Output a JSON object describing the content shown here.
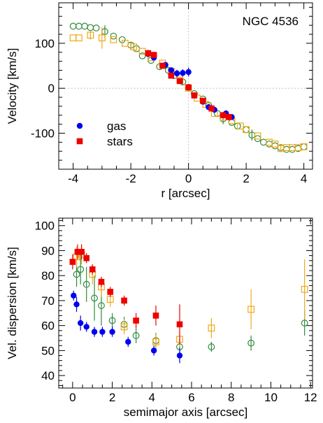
{
  "chart_data": [
    {
      "type": "scatter",
      "annotation": "NGC 4536",
      "xlabel": "r [arcsec]",
      "ylabel": "Velocity [km/s]",
      "xlim": [
        -4.5,
        4.3
      ],
      "ylim": [
        -180,
        190
      ],
      "xticks": [
        -4,
        -2,
        0,
        2,
        4
      ],
      "xtick_labels": [
        "-4",
        "-2",
        "0",
        "2",
        "4"
      ],
      "yticks": [
        -100,
        0,
        100
      ],
      "ytick_labels": [
        "-100",
        "0",
        "100"
      ],
      "reference_lines": {
        "x": 0,
        "y": 0
      },
      "legend_placement": "lower-left",
      "legend": [
        {
          "label": "gas",
          "marker": "filled-circle",
          "color": "#0000ee"
        },
        {
          "label": "stars",
          "marker": "filled-square",
          "color": "#ee0000"
        }
      ],
      "series": [
        {
          "name": "gas",
          "marker": "filled-circle",
          "color": "#0000ee",
          "points": [
            {
              "x": -1.4,
              "y": 76,
              "err": 6
            },
            {
              "x": -1.2,
              "y": 68,
              "err": 6
            },
            {
              "x": -0.8,
              "y": 52,
              "err": 5
            },
            {
              "x": -0.6,
              "y": 40,
              "err": 5
            },
            {
              "x": -0.4,
              "y": 33,
              "err": 8
            },
            {
              "x": -0.2,
              "y": 34,
              "err": 8
            },
            {
              "x": 0.0,
              "y": 36,
              "err": 10
            },
            {
              "x": 0.2,
              "y": -16,
              "err": 5
            },
            {
              "x": 0.5,
              "y": -30,
              "err": 5
            },
            {
              "x": 0.7,
              "y": -42,
              "err": 5
            },
            {
              "x": 0.9,
              "y": -48,
              "err": 5
            },
            {
              "x": 1.3,
              "y": -56,
              "err": 6
            },
            {
              "x": 1.5,
              "y": -64,
              "err": 6
            }
          ]
        },
        {
          "name": "stars",
          "marker": "filled-square",
          "color": "#ee0000",
          "points": [
            {
              "x": -1.4,
              "y": 78,
              "err": 7
            },
            {
              "x": -1.2,
              "y": 74,
              "err": 7
            },
            {
              "x": -0.9,
              "y": 50,
              "err": 6
            },
            {
              "x": -0.6,
              "y": 28,
              "err": 6
            },
            {
              "x": -0.3,
              "y": 16,
              "err": 6
            },
            {
              "x": 0.0,
              "y": 2,
              "err": 7
            },
            {
              "x": 0.2,
              "y": -16,
              "err": 7
            },
            {
              "x": 0.5,
              "y": -28,
              "err": 7
            },
            {
              "x": 0.8,
              "y": -45,
              "err": 7
            },
            {
              "x": 1.2,
              "y": -60,
              "err": 7
            },
            {
              "x": 1.4,
              "y": -64,
              "err": 7
            }
          ]
        },
        {
          "name": "",
          "marker": "open-circle",
          "color": "#2e8b3c",
          "points": [
            {
              "x": -4.0,
              "y": 138,
              "err": 0
            },
            {
              "x": -3.8,
              "y": 138,
              "err": 0
            },
            {
              "x": -3.6,
              "y": 138,
              "err": 0
            },
            {
              "x": -3.4,
              "y": 135,
              "err": 0
            },
            {
              "x": -3.2,
              "y": 134,
              "err": 0
            },
            {
              "x": -2.9,
              "y": 126,
              "err": 14
            },
            {
              "x": -2.6,
              "y": 116,
              "err": 0
            },
            {
              "x": -2.3,
              "y": 108,
              "err": 0
            },
            {
              "x": -2.0,
              "y": 96,
              "err": 6
            },
            {
              "x": -1.8,
              "y": 88,
              "err": 0
            },
            {
              "x": -1.6,
              "y": 72,
              "err": 0
            },
            {
              "x": -1.3,
              "y": 62,
              "err": 0
            },
            {
              "x": -1.0,
              "y": 48,
              "err": 0
            },
            {
              "x": -0.7,
              "y": 40,
              "err": 0
            },
            {
              "x": -0.5,
              "y": 28,
              "err": 0
            },
            {
              "x": -0.2,
              "y": 14,
              "err": 6
            },
            {
              "x": 0.0,
              "y": 2,
              "err": 0
            },
            {
              "x": 0.2,
              "y": -12,
              "err": 0
            },
            {
              "x": 0.5,
              "y": -24,
              "err": 0
            },
            {
              "x": 0.7,
              "y": -38,
              "err": 0
            },
            {
              "x": 1.0,
              "y": -56,
              "err": 0
            },
            {
              "x": 1.2,
              "y": -68,
              "err": 12
            },
            {
              "x": 1.5,
              "y": -76,
              "err": 0
            },
            {
              "x": 1.7,
              "y": -84,
              "err": 0
            },
            {
              "x": 2.0,
              "y": -92,
              "err": 0
            },
            {
              "x": 2.2,
              "y": -104,
              "err": 12
            },
            {
              "x": 2.4,
              "y": -112,
              "err": 0
            },
            {
              "x": 2.6,
              "y": -120,
              "err": 0
            },
            {
              "x": 2.8,
              "y": -124,
              "err": 0
            },
            {
              "x": 3.0,
              "y": -128,
              "err": 0
            },
            {
              "x": 3.2,
              "y": -132,
              "err": 0
            },
            {
              "x": 3.4,
              "y": -136,
              "err": 0
            },
            {
              "x": 3.6,
              "y": -136,
              "err": 0
            },
            {
              "x": 3.8,
              "y": -134,
              "err": 0
            },
            {
              "x": 4.0,
              "y": -130,
              "err": 0
            }
          ]
        },
        {
          "name": "",
          "marker": "open-square",
          "color": "#f0a818",
          "points": [
            {
              "x": -4.0,
              "y": 112,
              "err": 0
            },
            {
              "x": -3.8,
              "y": 112,
              "err": 0
            },
            {
              "x": -3.4,
              "y": 118,
              "err": 10
            },
            {
              "x": -3.0,
              "y": 112,
              "err": 24
            },
            {
              "x": -2.6,
              "y": 108,
              "err": 0
            },
            {
              "x": -2.2,
              "y": 100,
              "err": 0
            },
            {
              "x": -1.9,
              "y": 92,
              "err": 10
            },
            {
              "x": -1.6,
              "y": 82,
              "err": 0
            },
            {
              "x": -1.3,
              "y": 68,
              "err": 0
            },
            {
              "x": -0.9,
              "y": 56,
              "err": 0
            },
            {
              "x": -0.6,
              "y": 38,
              "err": 0
            },
            {
              "x": -0.3,
              "y": 18,
              "err": 0
            },
            {
              "x": 0.0,
              "y": 0,
              "err": 0
            },
            {
              "x": 0.3,
              "y": -22,
              "err": 0
            },
            {
              "x": 0.6,
              "y": -36,
              "err": 0
            },
            {
              "x": 0.9,
              "y": -56,
              "err": 0
            },
            {
              "x": 1.2,
              "y": -64,
              "err": 0
            },
            {
              "x": 1.5,
              "y": -72,
              "err": 0
            },
            {
              "x": 1.8,
              "y": -84,
              "err": 0
            },
            {
              "x": 2.0,
              "y": -92,
              "err": 0
            },
            {
              "x": 2.4,
              "y": -106,
              "err": 0
            },
            {
              "x": 2.8,
              "y": -120,
              "err": 0
            },
            {
              "x": 3.0,
              "y": -124,
              "err": 0
            },
            {
              "x": 3.2,
              "y": -134,
              "err": 8
            },
            {
              "x": 3.4,
              "y": -132,
              "err": 0
            },
            {
              "x": 3.6,
              "y": -132,
              "err": 0
            },
            {
              "x": 3.8,
              "y": -132,
              "err": 0
            },
            {
              "x": 4.0,
              "y": -130,
              "err": 0
            }
          ]
        }
      ]
    },
    {
      "type": "scatter",
      "xlabel": "semimajor axis [arcsec]",
      "ylabel": "Vel. dispersion [km/s]",
      "xlim": [
        -0.7,
        12.1
      ],
      "ylim": [
        35,
        103
      ],
      "xticks": [
        0,
        2,
        4,
        6,
        8,
        10,
        12
      ],
      "xtick_labels": [
        "0",
        "2",
        "4",
        "6",
        "8",
        "10",
        "12"
      ],
      "yticks": [
        40,
        50,
        60,
        70,
        80,
        90,
        100
      ],
      "ytick_labels": [
        "40",
        "50",
        "60",
        "70",
        "80",
        "90",
        "100"
      ],
      "series": [
        {
          "name": "",
          "marker": "filled-circle",
          "color": "#0000ee",
          "points": [
            {
              "x": 0.05,
              "y": 72,
              "err": 2
            },
            {
              "x": 0.2,
              "y": 68.5,
              "err": 3
            },
            {
              "x": 0.4,
              "y": 61,
              "err": 3
            },
            {
              "x": 0.7,
              "y": 59.5,
              "err": 2
            },
            {
              "x": 1.1,
              "y": 57.5,
              "err": 2
            },
            {
              "x": 1.5,
              "y": 57.5,
              "err": 2
            },
            {
              "x": 2.0,
              "y": 57.5,
              "err": 2
            },
            {
              "x": 2.8,
              "y": 53.5,
              "err": 2
            },
            {
              "x": 4.1,
              "y": 50,
              "err": 2
            },
            {
              "x": 5.4,
              "y": 48,
              "err": 3
            }
          ]
        },
        {
          "name": "",
          "marker": "filled-square",
          "color": "#ee0000",
          "points": [
            {
              "x": 0.0,
              "y": 85.5,
              "err": 3
            },
            {
              "x": 0.25,
              "y": 89.5,
              "err": 3
            },
            {
              "x": 0.45,
              "y": 89.5,
              "err": 3
            },
            {
              "x": 0.7,
              "y": 87,
              "err": 2
            },
            {
              "x": 1.0,
              "y": 82.5,
              "err": 2
            },
            {
              "x": 1.45,
              "y": 77.5,
              "err": 2
            },
            {
              "x": 1.9,
              "y": 73.5,
              "err": 2
            },
            {
              "x": 2.6,
              "y": 70,
              "err": 2
            },
            {
              "x": 3.2,
              "y": 62,
              "err": 3
            },
            {
              "x": 4.2,
              "y": 64,
              "err": 4
            },
            {
              "x": 5.4,
              "y": 60.5,
              "err": 8
            }
          ]
        },
        {
          "name": "",
          "marker": "open-circle",
          "color": "#2e8b3c",
          "points": [
            {
              "x": 0.2,
              "y": 80.5,
              "err": 5
            },
            {
              "x": 0.4,
              "y": 82.5,
              "err": 6
            },
            {
              "x": 0.7,
              "y": 76.5,
              "err": 7
            },
            {
              "x": 1.1,
              "y": 71,
              "err": 9
            },
            {
              "x": 1.45,
              "y": 68,
              "err": 8
            },
            {
              "x": 2.0,
              "y": 62,
              "err": 3
            },
            {
              "x": 2.6,
              "y": 60.5,
              "err": 3
            },
            {
              "x": 3.2,
              "y": 56,
              "err": 3
            },
            {
              "x": 4.2,
              "y": 54,
              "err": 3
            },
            {
              "x": 5.4,
              "y": 51.5,
              "err": 3
            },
            {
              "x": 7.0,
              "y": 51.5,
              "err": 2
            },
            {
              "x": 9.0,
              "y": 53,
              "err": 3
            },
            {
              "x": 11.7,
              "y": 61,
              "err": 5
            }
          ]
        },
        {
          "name": "",
          "marker": "open-square",
          "color": "#f0a818",
          "points": [
            {
              "x": 0.2,
              "y": 87.5,
              "err": 4
            },
            {
              "x": 0.45,
              "y": 88.5,
              "err": 4
            },
            {
              "x": 1.0,
              "y": 80.5,
              "err": 4
            },
            {
              "x": 1.45,
              "y": 75.5,
              "err": 4
            },
            {
              "x": 1.9,
              "y": 70.5,
              "err": 3
            },
            {
              "x": 2.6,
              "y": 59.5,
              "err": 3
            },
            {
              "x": 4.2,
              "y": 53.5,
              "err": 3
            },
            {
              "x": 5.4,
              "y": 54.5,
              "err": 3
            },
            {
              "x": 7.0,
              "y": 59,
              "err": 4
            },
            {
              "x": 9.0,
              "y": 66.5,
              "err": 8
            },
            {
              "x": 11.7,
              "y": 74.5,
              "err": 12
            }
          ]
        }
      ]
    }
  ]
}
